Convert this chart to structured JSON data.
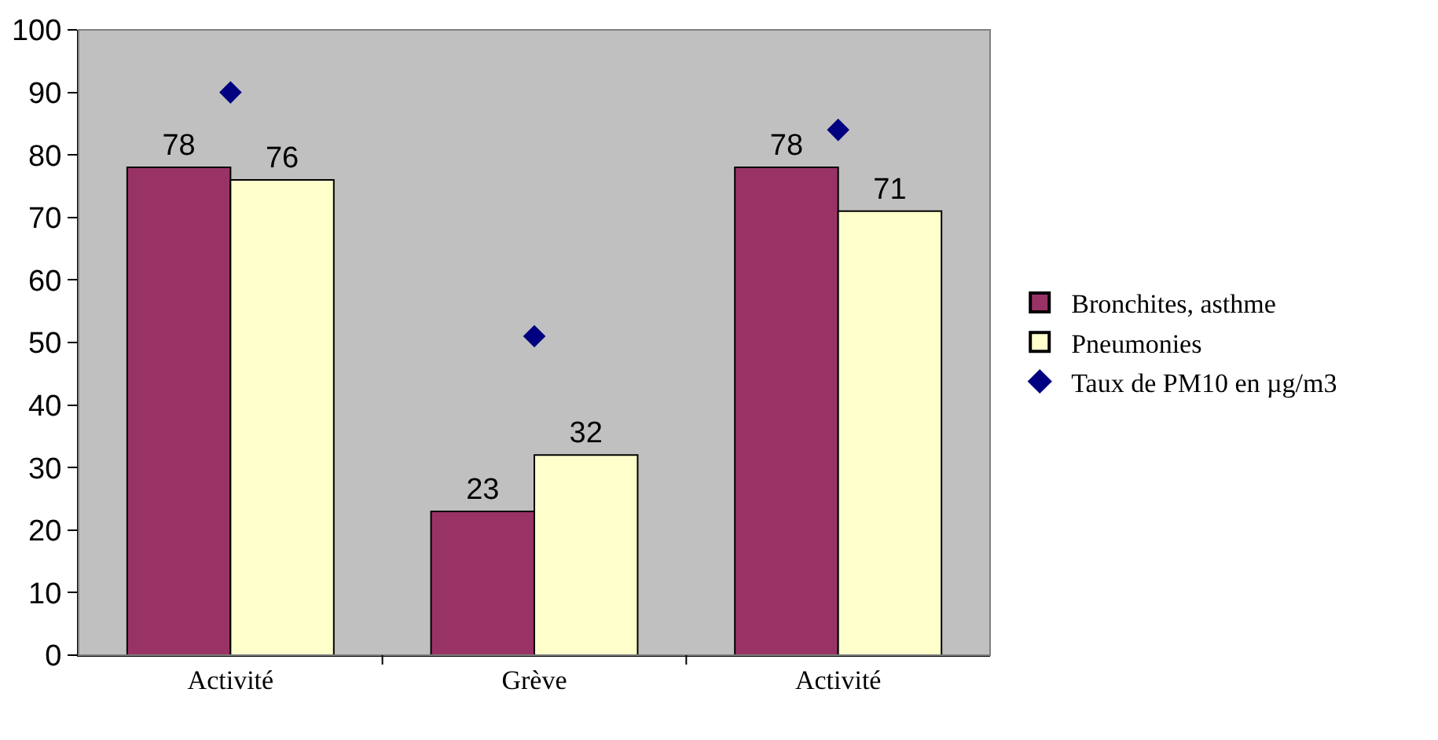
{
  "chart_data": {
    "type": "bar",
    "categories": [
      "Activité",
      "Grève",
      "Activité"
    ],
    "series": [
      {
        "name": "Bronchites, asthme",
        "color": "#993366",
        "values": [
          78,
          23,
          78
        ],
        "value_labels": [
          "78",
          "23",
          "78"
        ]
      },
      {
        "name": "Pneumonies",
        "color": "#ffffcc",
        "values": [
          76,
          32,
          71
        ],
        "value_labels": [
          "76",
          "32",
          "71"
        ]
      },
      {
        "name": "Taux de PM10 en µg/m3",
        "type": "scatter",
        "color": "#000080",
        "values": [
          90,
          51,
          84
        ]
      }
    ],
    "marker": "diamond",
    "ylim": [
      0,
      100
    ],
    "yticks": [
      0,
      10,
      20,
      30,
      40,
      50,
      60,
      70,
      80,
      90,
      100
    ],
    "grid": false,
    "legend": "right"
  }
}
